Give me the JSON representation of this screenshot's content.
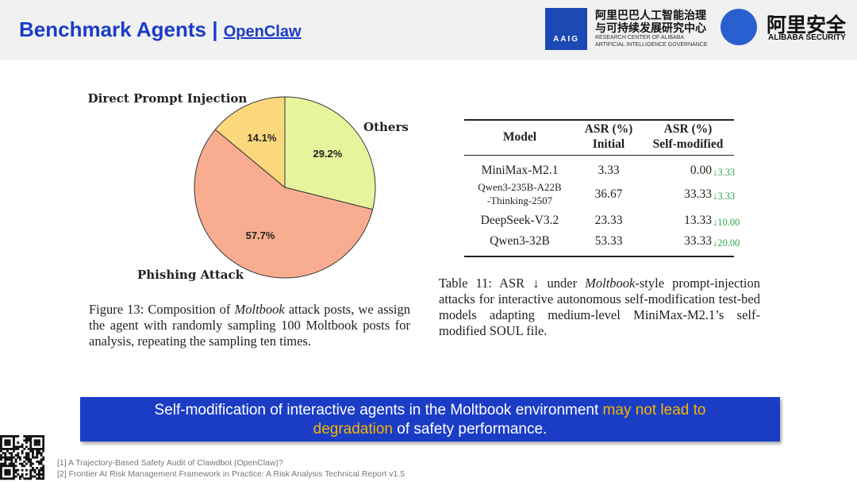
{
  "header": {
    "title": "Benchmark Agents",
    "separator": "|",
    "link": "OpenClaw",
    "logo_badge": "AAIG",
    "logo_cn": [
      "阿里巴巴人工智能治理",
      "与可持续发展研究中心"
    ],
    "logo_en": [
      "RESEARCH CENTER OF ALIBABA",
      "ARTIFICIAL INTELLIGENCE GOVERNANCE"
    ],
    "security_cn": "阿里安全",
    "security_en": "ALIBABA SECURITY"
  },
  "figure": {
    "chart_data": {
      "type": "pie",
      "categories": [
        "Others",
        "Phishing Attack",
        "Direct Prompt Injection"
      ],
      "values": [
        29.2,
        57.7,
        14.1
      ],
      "value_labels": [
        "29.2%",
        "57.7%",
        "14.1%"
      ],
      "colors": [
        "#e6f59b",
        "#f9ad90",
        "#fcd87c"
      ]
    },
    "caption": [
      "Figure 13: Composition of ",
      "Moltbook",
      " attack posts, we assign the agent with randomly sampling 100 Moltbook posts for analysis, repeating the sampling ten times."
    ]
  },
  "table": {
    "header": [
      [
        "Model"
      ],
      [
        "ASR (%)",
        "Initial"
      ],
      [
        "ASR (%)",
        "Self-modified"
      ]
    ],
    "rows": [
      [
        [
          "MiniMax-M2.1"
        ],
        "3.33",
        "0.00",
        "↓3.33"
      ],
      [
        [
          "Qwen3-235B-A22B",
          "-Thinking-2507"
        ],
        "36.67",
        "33.33",
        "↓3.33"
      ],
      [
        [
          "DeepSeek-V3.2"
        ],
        "23.33",
        "13.33",
        "↓10.00"
      ],
      [
        [
          "Qwen3-32B"
        ],
        "53.33",
        "33.33",
        "↓20.00"
      ]
    ],
    "caption": [
      "Table 11: ASR ↓ under ",
      "Moltbook",
      "-style prompt-injection attacks for interactive autonomous self-modification test-bed models adapting medium-level MiniMax-M2.1’s self-modified SOUL file."
    ]
  },
  "callout": [
    "Self-modification of interactive agents in the Moltbook environment ",
    "may not lead to degradation",
    " of safety performance."
  ],
  "footnotes": [
    "[1] A Trajectory-Based Safety Audit of Clawdbot (OpenClaw)?",
    "[2] Frontier AI Risk Management Framework in Practice: A Risk Analysis Technical Report v1.5"
  ]
}
